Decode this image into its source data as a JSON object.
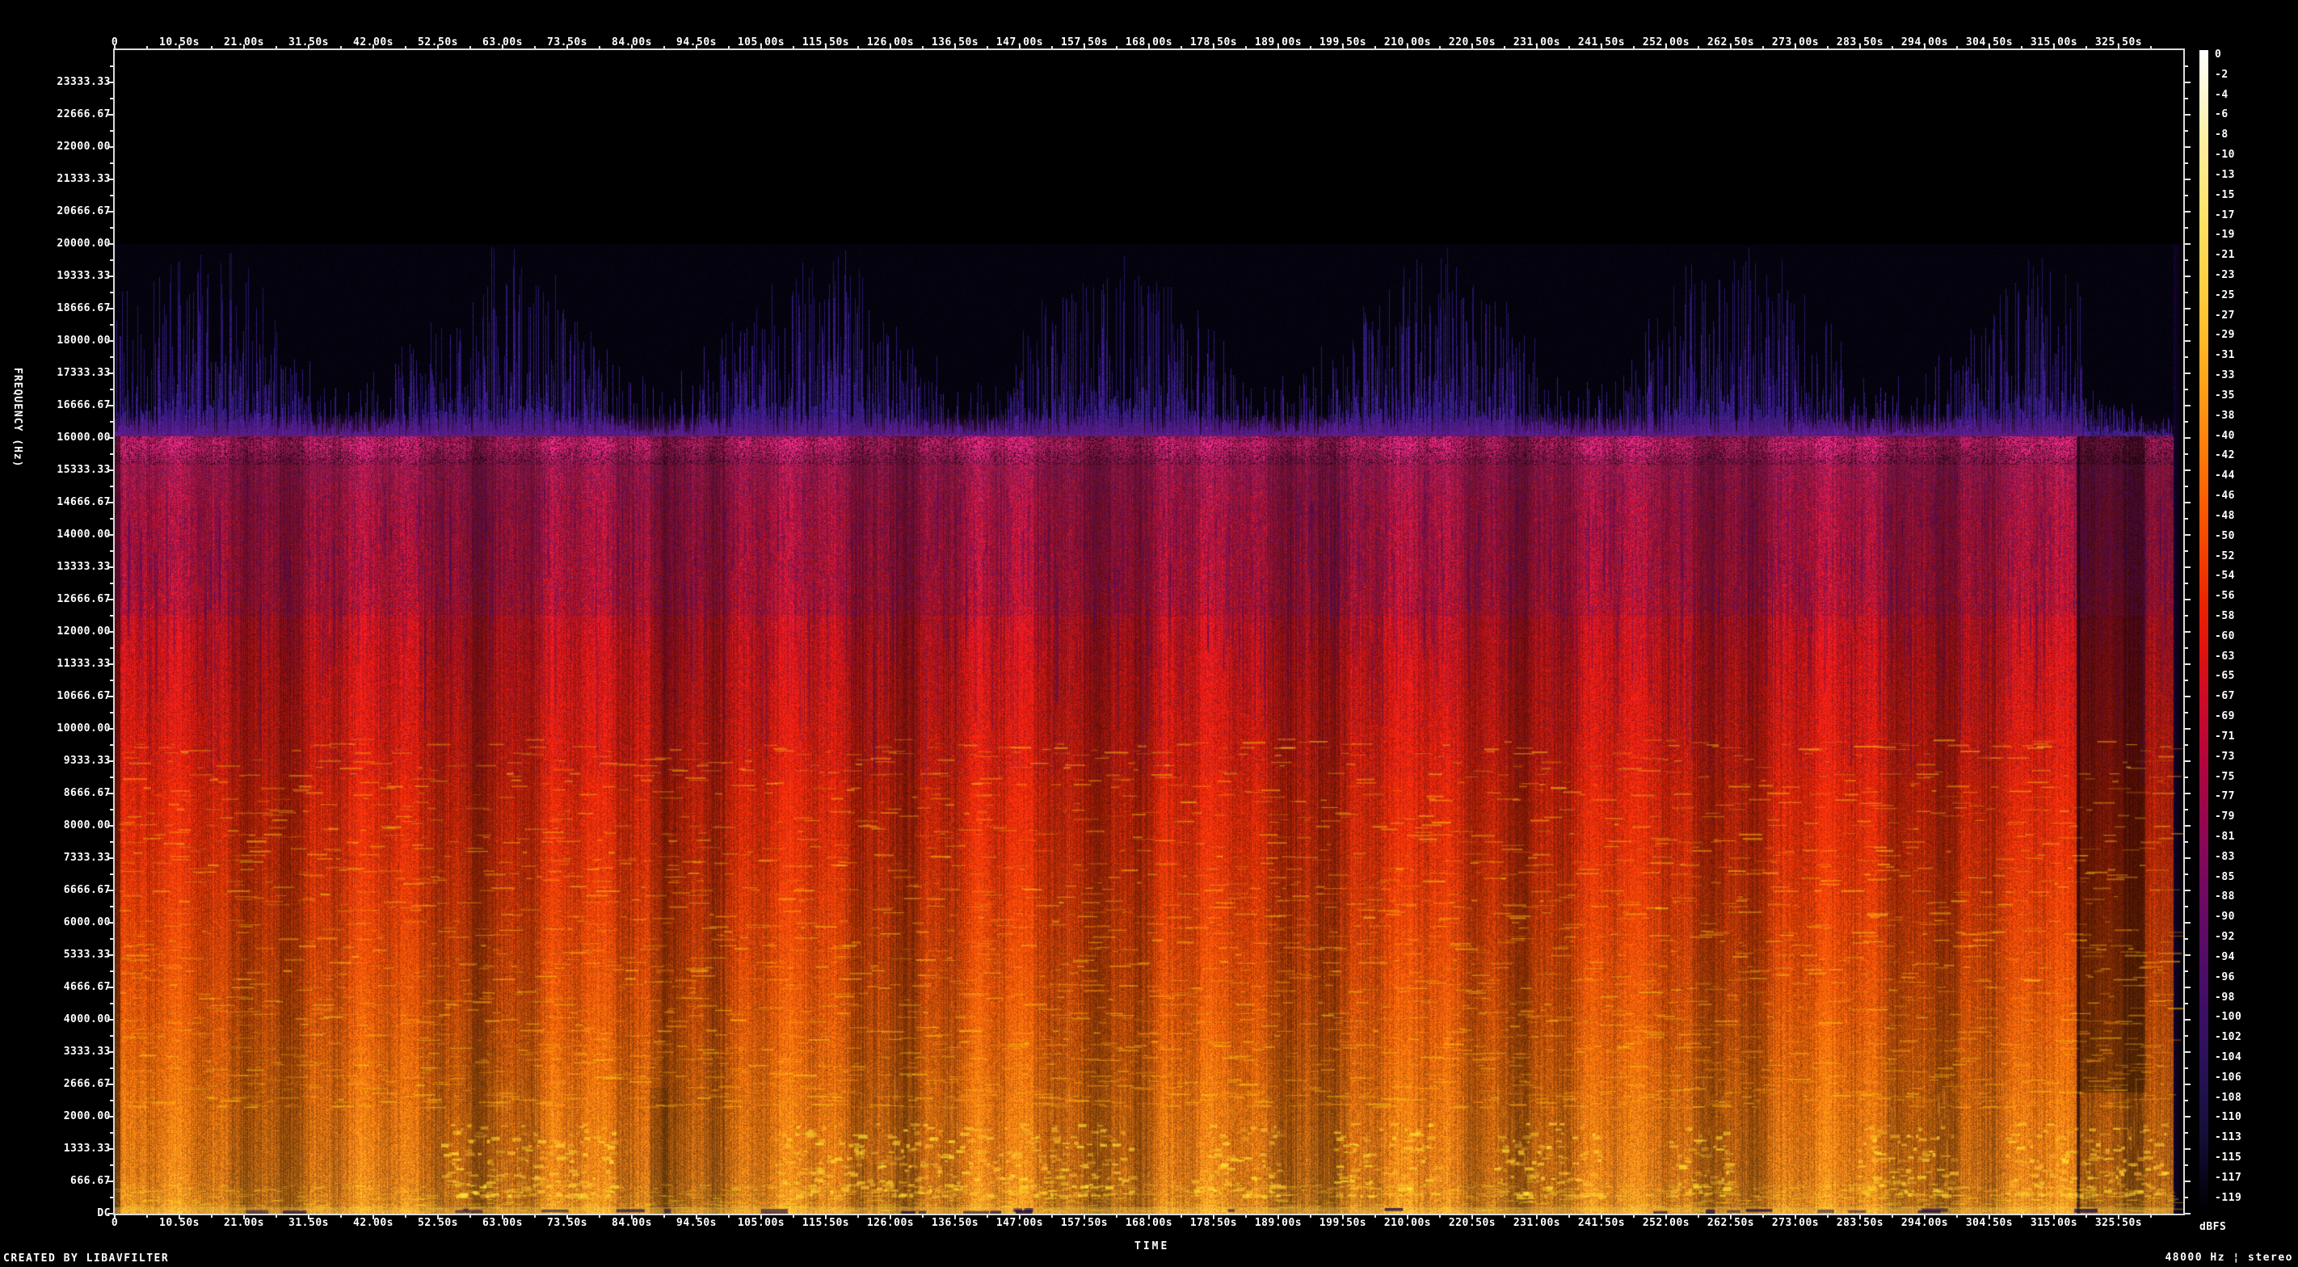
{
  "meta": {
    "creator_text": "CREATED BY LIBAVFILTER",
    "stream_info": "48000 Hz ¦ stereo"
  },
  "axes": {
    "time_title": "TIME",
    "freq_title": "FREQUENCY (Hz)",
    "legend_title": "dBFS",
    "time_tick_labels": [
      "0",
      "10.50s",
      "21.00s",
      "31.50s",
      "42.00s",
      "52.50s",
      "63.00s",
      "73.50s",
      "84.00s",
      "94.50s",
      "105.00s",
      "115.50s",
      "126.00s",
      "136.50s",
      "147.00s",
      "157.50s",
      "168.00s",
      "178.50s",
      "189.00s",
      "199.50s",
      "210.00s",
      "220.50s",
      "231.00s",
      "241.50s",
      "252.00s",
      "262.50s",
      "273.00s",
      "283.50s",
      "294.00s",
      "304.50s",
      "315.00s",
      "325.50s"
    ],
    "freq_tick_labels": [
      "23333.33",
      "22666.67",
      "22000.00",
      "21333.33",
      "20666.67",
      "20000.00",
      "19333.33",
      "18666.67",
      "18000.00",
      "17333.33",
      "16666.67",
      "16000.00",
      "15333.33",
      "14666.67",
      "14000.00",
      "13333.33",
      "12666.67",
      "12000.00",
      "11333.33",
      "10666.67",
      "10000.00",
      "9333.33",
      "8666.67",
      "8000.00",
      "7333.33",
      "6666.67",
      "6000.00",
      "5333.33",
      "4666.67",
      "4000.00",
      "3333.33",
      "2666.67",
      "2000.00",
      "1333.33",
      "666.67"
    ],
    "freq_dc_label": "DC",
    "db_tick_labels": [
      "0",
      "-2",
      "-4",
      "-6",
      "-8",
      "-10",
      "-13",
      "-15",
      "-17",
      "-19",
      "-21",
      "-23",
      "-25",
      "-27",
      "-29",
      "-31",
      "-33",
      "-35",
      "-38",
      "-40",
      "-42",
      "-44",
      "-46",
      "-48",
      "-50",
      "-52",
      "-54",
      "-56",
      "-58",
      "-60",
      "-63",
      "-65",
      "-67",
      "-69",
      "-71",
      "-73",
      "-75",
      "-77",
      "-79",
      "-81",
      "-83",
      "-85",
      "-88",
      "-90",
      "-92",
      "-94",
      "-96",
      "-98",
      "-100",
      "-102",
      "-104",
      "-106",
      "-108",
      "-110",
      "-113",
      "-115",
      "-117",
      "-119"
    ]
  },
  "chart_data": {
    "type": "heatmap",
    "subtype": "audio-spectrogram",
    "title": "",
    "xlabel": "TIME",
    "ylabel": "FREQUENCY (Hz)",
    "legend_label": "dBFS",
    "x_range_s": [
      0,
      336
    ],
    "x_major_step_s": 10.5,
    "y_range_hz": [
      0,
      24000
    ],
    "y_major_step_hz": 666.67,
    "db_range": [
      0,
      -120
    ],
    "sample_rate_hz": 48000,
    "channels": "stereo",
    "colormap_stops": [
      {
        "pos": 0.0,
        "color": "#ffffff"
      },
      {
        "pos": 0.03,
        "color": "#fff8dc"
      },
      {
        "pos": 0.08,
        "color": "#ffee9e"
      },
      {
        "pos": 0.14,
        "color": "#ffe26a"
      },
      {
        "pos": 0.19,
        "color": "#ffd447"
      },
      {
        "pos": 0.24,
        "color": "#ffbe2c"
      },
      {
        "pos": 0.29,
        "color": "#ffa018"
      },
      {
        "pos": 0.34,
        "color": "#ff7f0a"
      },
      {
        "pos": 0.39,
        "color": "#fb5c02"
      },
      {
        "pos": 0.44,
        "color": "#f23b00"
      },
      {
        "pos": 0.48,
        "color": "#e82202"
      },
      {
        "pos": 0.52,
        "color": "#dc1210"
      },
      {
        "pos": 0.56,
        "color": "#cc0a28"
      },
      {
        "pos": 0.61,
        "color": "#b4053c"
      },
      {
        "pos": 0.66,
        "color": "#98064e"
      },
      {
        "pos": 0.7,
        "color": "#7e085c"
      },
      {
        "pos": 0.75,
        "color": "#620a66"
      },
      {
        "pos": 0.8,
        "color": "#480d67"
      },
      {
        "pos": 0.85,
        "color": "#331060"
      },
      {
        "pos": 0.89,
        "color": "#23114f"
      },
      {
        "pos": 0.93,
        "color": "#150f3a"
      },
      {
        "pos": 0.96,
        "color": "#0a0823"
      },
      {
        "pos": 1.0,
        "color": "#000000"
      }
    ],
    "spectral_band_stops": [
      {
        "hz": 0,
        "rgb": [
          255,
          188,
          66
        ]
      },
      {
        "hz": 70,
        "rgb": [
          255,
          172,
          46
        ]
      },
      {
        "hz": 250,
        "rgb": [
          253,
          150,
          32
        ]
      },
      {
        "hz": 900,
        "rgb": [
          251,
          136,
          24
        ]
      },
      {
        "hz": 1900,
        "rgb": [
          250,
          126,
          17
        ]
      },
      {
        "hz": 3000,
        "rgb": [
          248,
          112,
          12
        ]
      },
      {
        "hz": 4400,
        "rgb": [
          246,
          92,
          8
        ]
      },
      {
        "hz": 6000,
        "rgb": [
          243,
          70,
          7
        ]
      },
      {
        "hz": 7600,
        "rgb": [
          239,
          50,
          9
        ]
      },
      {
        "hz": 9600,
        "rgb": [
          233,
          33,
          13
        ]
      },
      {
        "hz": 11500,
        "rgb": [
          224,
          24,
          24
        ]
      },
      {
        "hz": 13000,
        "rgb": [
          211,
          22,
          42
        ]
      },
      {
        "hz": 14600,
        "rgb": [
          196,
          22,
          56
        ]
      },
      {
        "hz": 15300,
        "rgb": [
          186,
          26,
          70
        ]
      }
    ],
    "features": {
      "lowpass_cutoff_hz": 16000,
      "cutoff_ridge_hz": [
        15450,
        16050
      ],
      "hf_streaks_max_hz": 20000,
      "content_end_s": 334.3,
      "dark_line_s": 318.9,
      "quiet_span_s": [
        319.5,
        329.3
      ],
      "soft_dip_s": [
        86.8,
        89.9
      ],
      "speech_bursts_s": [
        [
          53,
          81
        ],
        [
          107,
          165
        ],
        [
          175,
          189
        ],
        [
          198,
          215
        ],
        [
          224,
          241
        ],
        [
          252,
          262
        ],
        [
          283,
          299
        ],
        [
          307,
          333
        ]
      ]
    }
  }
}
